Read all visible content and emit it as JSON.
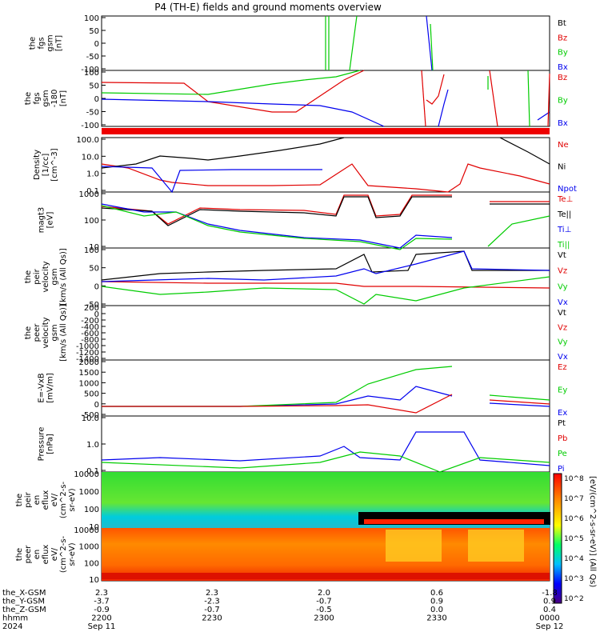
{
  "title": "P4 (TH-E) fields and ground moments overview",
  "colors": {
    "black": "#000000",
    "red": "#e00000",
    "green": "#00cc00",
    "blue": "#0000ee"
  },
  "panels": [
    {
      "id": "fgs",
      "ylabel": [
        "the",
        "fgs",
        "gsm",
        "[nT]"
      ],
      "yticks": [
        "100",
        "50",
        "0",
        "-50",
        "-100"
      ],
      "legend": [
        {
          "text": "Bt",
          "color": "#000000"
        },
        {
          "text": "Bz",
          "color": "#e00000"
        },
        {
          "text": "By",
          "color": "#00cc00"
        },
        {
          "text": "Bx",
          "color": "#0000ee"
        }
      ]
    },
    {
      "id": "fgs_dsl",
      "ylabel": [
        "the",
        "fgs",
        "gsm",
        "-180",
        "[nT]"
      ],
      "yticks": [
        "100",
        "50",
        "0",
        "-50",
        "-100"
      ],
      "legend": [
        {
          "text": "Bz",
          "color": "#e00000"
        },
        {
          "text": "By",
          "color": "#00cc00"
        },
        {
          "text": "Bx",
          "color": "#0000ee"
        }
      ]
    },
    {
      "id": "density",
      "ylabel": [
        "Density",
        "[1/cc]",
        "[cm^-3]"
      ],
      "yticks": [
        "100.0",
        "10.0",
        "1.0",
        "0.1"
      ],
      "legend": [
        {
          "text": "Ne",
          "color": "#e00000"
        },
        {
          "text": "Ni",
          "color": "#000000"
        },
        {
          "text": "Npot",
          "color": "#0000ee"
        }
      ]
    },
    {
      "id": "temp",
      "ylabel": [
        "magt3",
        "[eV]"
      ],
      "yticks": [
        "1000",
        "100",
        "10"
      ],
      "legend": [
        {
          "text": "Te⊥",
          "color": "#e00000"
        },
        {
          "text": "Te||",
          "color": "#000000"
        },
        {
          "text": "Ti⊥",
          "color": "#0000ee"
        },
        {
          "text": "Ti||",
          "color": "#00cc00"
        }
      ]
    },
    {
      "id": "peir_vel",
      "ylabel": [
        "the",
        "peir",
        "velocity",
        "gsm",
        "[km/s (All Qs)]"
      ],
      "yticks": [
        "100",
        "50",
        "0",
        "-50"
      ],
      "legend": [
        {
          "text": "Vt",
          "color": "#000000"
        },
        {
          "text": "Vz",
          "color": "#e00000"
        },
        {
          "text": "Vy",
          "color": "#00cc00"
        },
        {
          "text": "Vx",
          "color": "#0000ee"
        }
      ]
    },
    {
      "id": "peer_vel",
      "ylabel": [
        "the",
        "peer",
        "velocity",
        "gsm",
        "[km/s (All Qs)]"
      ],
      "yticks": [
        "200",
        "0",
        "-200",
        "-400",
        "-600",
        "-800",
        "-1000",
        "-1200",
        "-1400"
      ],
      "legend": [
        {
          "text": "Vt",
          "color": "#000000"
        },
        {
          "text": "Vz",
          "color": "#e00000"
        },
        {
          "text": "Vy",
          "color": "#00cc00"
        },
        {
          "text": "Vx",
          "color": "#0000ee"
        }
      ]
    },
    {
      "id": "efield",
      "ylabel": [
        "E=-VxB",
        "[mV/m]"
      ],
      "yticks": [
        "2000",
        "1500",
        "1000",
        "500",
        "0",
        "-500"
      ],
      "legend": [
        {
          "text": "Ez",
          "color": "#e00000"
        },
        {
          "text": "Ey",
          "color": "#00cc00"
        },
        {
          "text": "Ex",
          "color": "#0000ee"
        }
      ]
    },
    {
      "id": "pressure",
      "ylabel": [
        "Pressure",
        "[nPa]"
      ],
      "yticks": [
        "10.0",
        "1.0",
        "0.1"
      ],
      "legend": [
        {
          "text": "Pt",
          "color": "#000000"
        },
        {
          "text": "Pb",
          "color": "#e00000"
        },
        {
          "text": "Pe",
          "color": "#00cc00"
        },
        {
          "text": "Pi",
          "color": "#0000ee"
        }
      ]
    },
    {
      "id": "peir_eflux",
      "ylabel": [
        "the",
        "peir",
        "en",
        "eflux",
        "eV/",
        "(cm^2-s-",
        "sr-eV)"
      ],
      "yticks": [
        "10000",
        "1000",
        "100",
        "10"
      ]
    },
    {
      "id": "peer_eflux",
      "ylabel": [
        "the",
        "peer",
        "en",
        "eflux",
        "eV/",
        "(cm^2-s-",
        "sr-eV)"
      ],
      "yticks": [
        "10000",
        "1000",
        "100",
        "10"
      ]
    }
  ],
  "colorbar": {
    "ticks": [
      "10^8",
      "10^7",
      "10^6",
      "10^5",
      "10^4",
      "10^3",
      "10^2"
    ],
    "label": "[eV/(cm^2-s-sr-eV)] (All Qs)"
  },
  "xaxis": {
    "rows": [
      {
        "label": "the_X-GSM",
        "values": [
          "2.3",
          "2.3",
          "2.0",
          "0.6",
          "-1.8"
        ]
      },
      {
        "label": "the_Y-GSM",
        "values": [
          "-3.7",
          "-2.3",
          "-0.7",
          "0.9",
          "0.9"
        ]
      },
      {
        "label": "the_Z-GSM",
        "values": [
          "-0.9",
          "-0.7",
          "-0.5",
          "0.0",
          "0.4"
        ]
      },
      {
        "label": "hhmm",
        "values": [
          "2200",
          "2230",
          "2300",
          "2330",
          "0000"
        ]
      },
      {
        "label": "2024",
        "values": [
          "Sep 11",
          "",
          "",
          "",
          "Sep 12"
        ]
      }
    ]
  },
  "chart_data": {
    "type": "line",
    "title": "P4 (TH-E) fields and ground moments overview",
    "x": [
      "2200",
      "2230",
      "2300",
      "2330",
      "0000"
    ],
    "series": [
      {
        "name": "Ne",
        "values": [
          1.3,
          0.3,
          0.2,
          0.1,
          1.0
        ]
      },
      {
        "name": "Ni",
        "values": [
          1.2,
          8.0,
          40.0,
          130.0,
          5.0
        ]
      },
      {
        "name": "Npot",
        "values": [
          1.1,
          1.5,
          1.5,
          null,
          null
        ]
      },
      {
        "name": "Pi",
        "values": [
          0.12,
          0.15,
          0.5,
          7.0,
          0.2
        ]
      }
    ]
  }
}
